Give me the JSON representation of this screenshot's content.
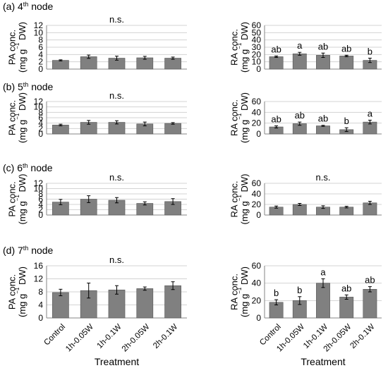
{
  "figure": {
    "xtitle": "Treatment",
    "categories": [
      "Control",
      "1h-0.05W",
      "1h-0.1W",
      "2h-0.05W",
      "2h-0.1W"
    ]
  },
  "chart_data": [
    {
      "type": "bar",
      "node_label": "(a) 4th node",
      "ylabel_1": "PA conc.",
      "ylabel_2": "(mg g−1 DW)",
      "yticks": [
        0,
        2,
        4,
        6,
        8,
        10,
        12
      ],
      "ylim": [
        0,
        12
      ],
      "values": [
        2.4,
        3.4,
        3.0,
        3.1,
        3.0
      ],
      "errors": [
        0.15,
        0.45,
        0.55,
        0.4,
        0.3
      ],
      "annotations": [],
      "center_annotation": "n.s.",
      "grid": true
    },
    {
      "type": "bar",
      "node_label": "",
      "ylabel_1": "RA conc.",
      "ylabel_2": "(mg g−1 DW)",
      "yticks": [
        0,
        10,
        20,
        30,
        40,
        50,
        60
      ],
      "ylim": [
        0,
        60
      ],
      "values": [
        17,
        21,
        19,
        18,
        12
      ],
      "errors": [
        1.0,
        2.0,
        3.0,
        1.0,
        3.0
      ],
      "annotations": [
        "ab",
        "a",
        "ab",
        "ab",
        "b"
      ],
      "center_annotation": "",
      "grid": true
    },
    {
      "type": "bar",
      "node_label": "(b) 5th node",
      "ylabel_1": "PA conc.",
      "ylabel_2": "(mg g−1 DW)",
      "yticks": [
        0,
        2,
        4,
        6,
        8,
        10,
        12
      ],
      "ylim": [
        0,
        12
      ],
      "values": [
        3.3,
        4.3,
        4.3,
        3.7,
        3.9
      ],
      "errors": [
        0.3,
        0.7,
        0.6,
        0.7,
        0.3
      ],
      "annotations": [],
      "center_annotation": "n.s.",
      "grid": true
    },
    {
      "type": "bar",
      "node_label": "",
      "ylabel_1": "RA conc.",
      "ylabel_2": "(mg g−1 DW)",
      "yticks": [
        0,
        20,
        40,
        60
      ],
      "ylim": [
        0,
        60
      ],
      "values": [
        13,
        19,
        15,
        8,
        22
      ],
      "errors": [
        2.0,
        3.0,
        1.0,
        3.5,
        3.5
      ],
      "annotations": [
        "ab",
        "ab",
        "ab",
        "b",
        "a"
      ],
      "center_annotation": "",
      "grid": true
    },
    {
      "type": "bar",
      "node_label": "(c) 6th node",
      "ylabel_1": "PA conc.",
      "ylabel_2": "(mg g−1 DW)",
      "yticks": [
        0,
        2,
        4,
        6,
        8,
        10,
        12
      ],
      "ylim": [
        0,
        12
      ],
      "values": [
        4.9,
        6.0,
        5.6,
        4.4,
        5.1
      ],
      "errors": [
        1.0,
        1.3,
        1.0,
        0.6,
        1.1
      ],
      "annotations": [],
      "center_annotation": "n.s.",
      "grid": true
    },
    {
      "type": "bar",
      "node_label": "",
      "ylabel_1": "RA conc.",
      "ylabel_2": "(mg g−1 DW)",
      "yticks": [
        0,
        20,
        40,
        60
      ],
      "ylim": [
        0,
        60
      ],
      "values": [
        15,
        20,
        15,
        15,
        23
      ],
      "errors": [
        2.0,
        2.0,
        2.5,
        1.5,
        3.0
      ],
      "annotations": [],
      "center_annotation": "n.s.",
      "grid": true
    },
    {
      "type": "bar",
      "node_label": "(d) 7th node",
      "ylabel_1": "PA conc.",
      "ylabel_2": "(mg g−1 DW)",
      "yticks": [
        0,
        4,
        8,
        12,
        16
      ],
      "ylim": [
        0,
        16
      ],
      "values": [
        7.8,
        8.4,
        8.6,
        9.0,
        9.9
      ],
      "errors": [
        1.0,
        2.3,
        1.3,
        0.5,
        1.2
      ],
      "annotations": [],
      "center_annotation": "n.s.",
      "grid": true
    },
    {
      "type": "bar",
      "node_label": "",
      "ylabel_1": "RA conc.",
      "ylabel_2": "(mg g−1 DW)",
      "yticks": [
        0,
        20,
        40,
        60
      ],
      "ylim": [
        0,
        60
      ],
      "values": [
        18,
        20,
        40,
        24,
        33
      ],
      "errors": [
        3.0,
        4.5,
        5.0,
        2.5,
        3.0
      ],
      "annotations": [
        "b",
        "b",
        "a",
        "ab",
        "ab"
      ],
      "center_annotation": "",
      "grid": true
    }
  ]
}
